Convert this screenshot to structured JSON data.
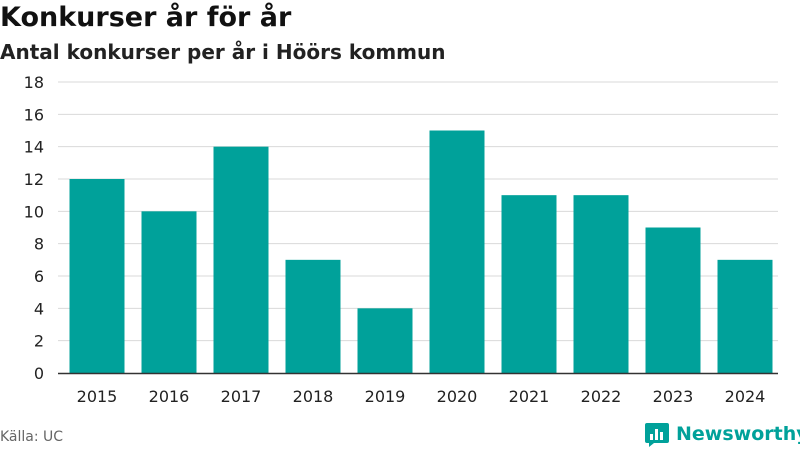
{
  "title": "Konkurser år för år",
  "subtitle": "Antal konkurser per år i Höörs kommun",
  "source": "Källa: UC",
  "brand": {
    "name": "Newsworthy",
    "icon": "bar-chart-logo-icon"
  },
  "colors": {
    "bar": "#00a19a",
    "grid": "#d9d9d9",
    "axis": "#333333",
    "brand": "#00a19a"
  },
  "chart_data": {
    "type": "bar",
    "categories": [
      "2015",
      "2016",
      "2017",
      "2018",
      "2019",
      "2020",
      "2021",
      "2022",
      "2023",
      "2024"
    ],
    "values": [
      12,
      10,
      14,
      7,
      4,
      15,
      11,
      11,
      9,
      7
    ],
    "ylim": [
      0,
      18
    ],
    "yticks": [
      0,
      2,
      4,
      6,
      8,
      10,
      12,
      14,
      16,
      18
    ],
    "grid": true,
    "legend": "none"
  }
}
